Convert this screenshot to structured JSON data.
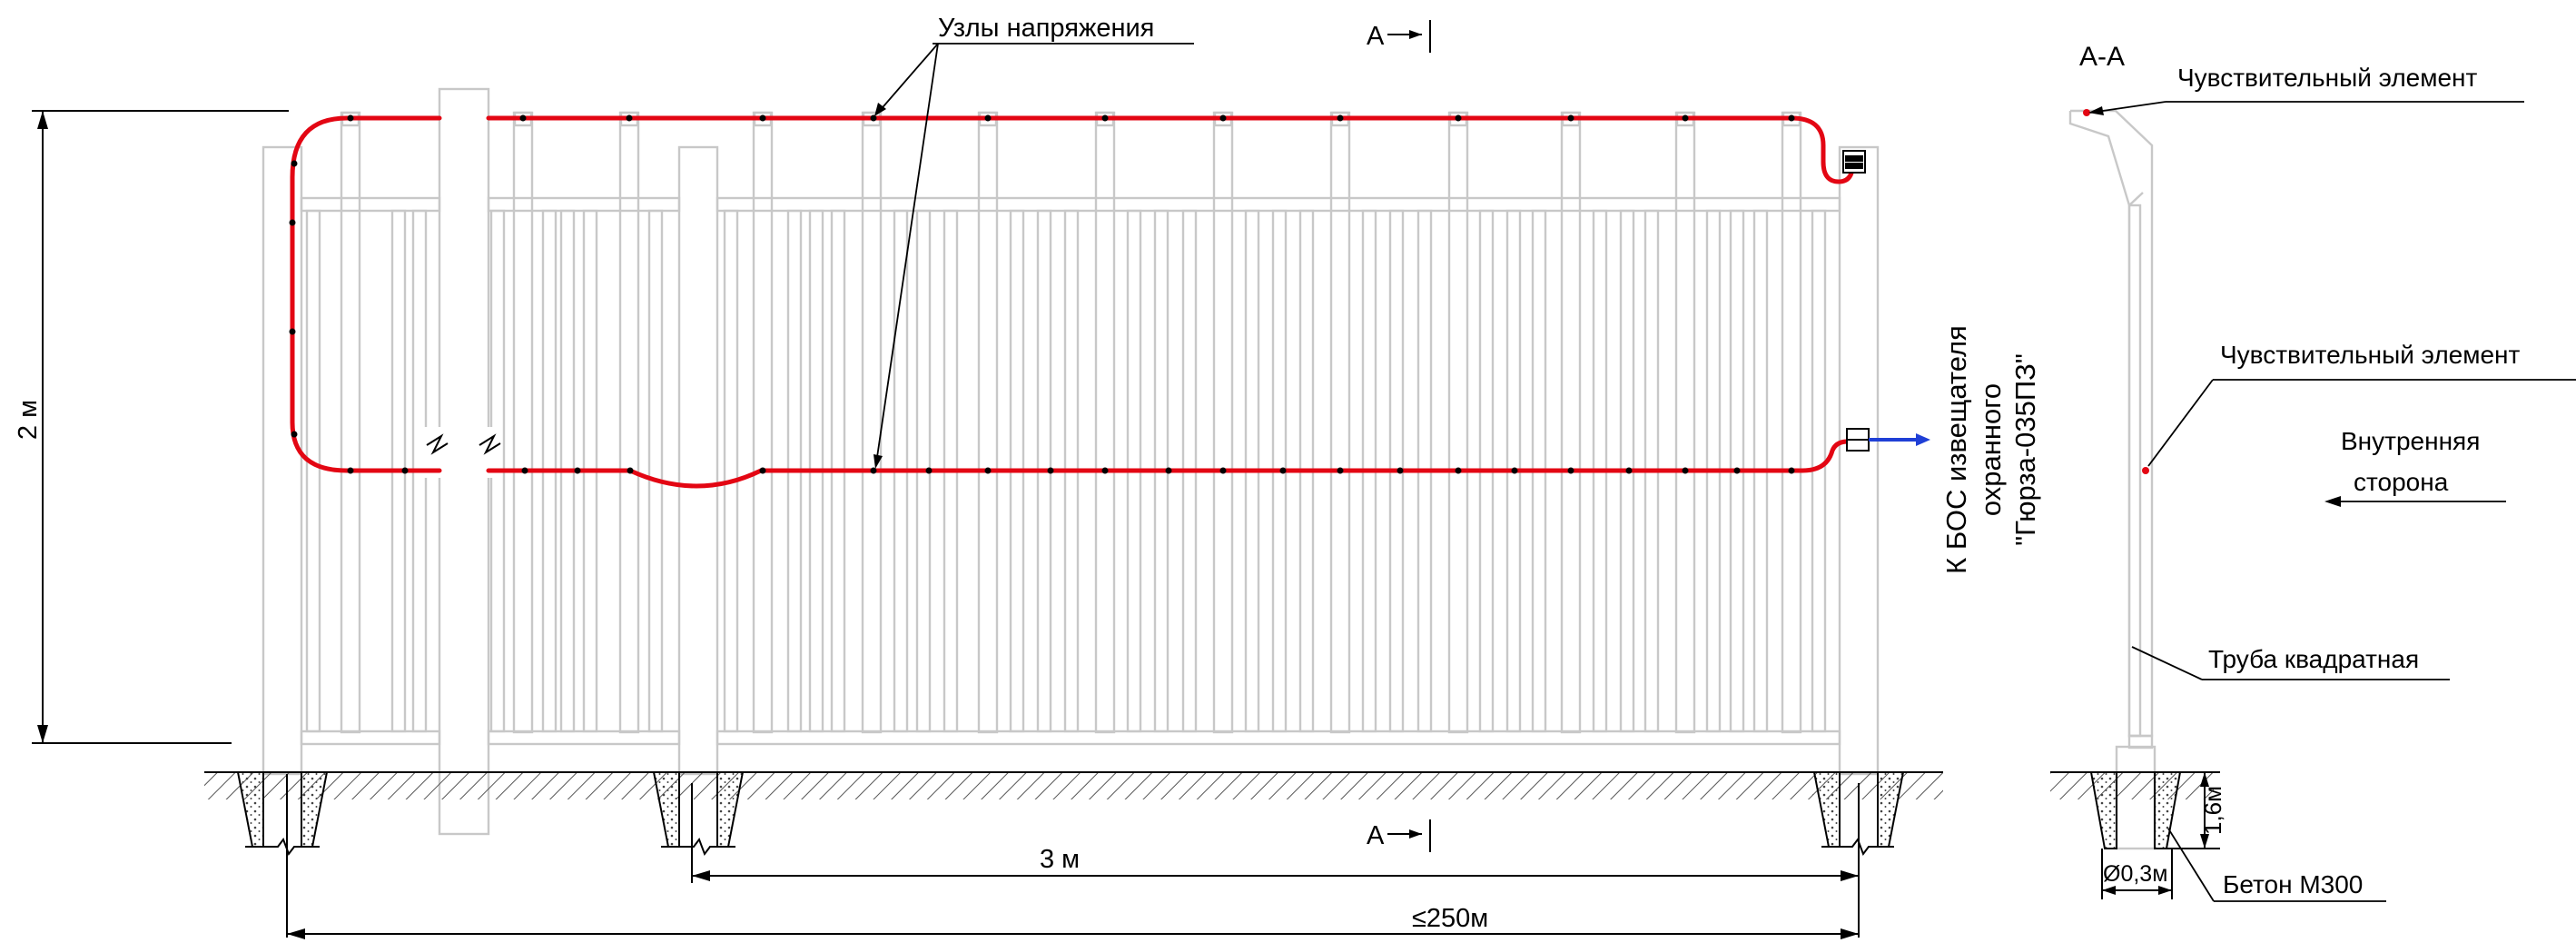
{
  "labels": {
    "tension_nodes": "Узлы напряжения",
    "section_mark_top": "А",
    "section_mark_bottom": "А",
    "section_title": "А-А",
    "sensor_1": "Чувствительный элемент",
    "sensor_2": "Чувствительный элемент",
    "inner_side_1": "Внутренняя",
    "inner_side_2": "сторона",
    "square_pipe": "Труба квадратная",
    "concrete": "Бетон М300",
    "connection_1": "К БОС извещателя",
    "connection_2": "охранного",
    "connection_3": "\"Гюрза-035ПЗ\""
  },
  "dimensions": {
    "height": "2 м",
    "span": "3 м",
    "total": "≤250м",
    "depth": "1,6м",
    "diameter": "Ø0,3м"
  },
  "colors": {
    "sensor_cable": "#e30613",
    "signal_arrow": "#1f3fd6",
    "fence": "#c8c8c8",
    "line": "#000000"
  }
}
